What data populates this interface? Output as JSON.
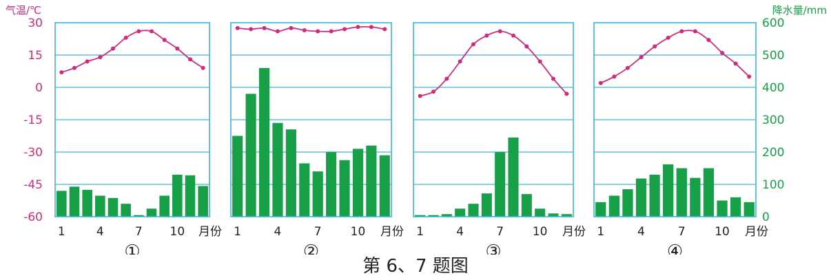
{
  "figure": {
    "caption": "第 6、7 题图",
    "temp_axis_label": "气温/℃",
    "precip_axis_label": "降水量/mm",
    "temp_ticks": [
      "30",
      "15",
      "0",
      "-15",
      "-30",
      "-45",
      "-60"
    ],
    "precip_ticks": [
      "600",
      "500",
      "400",
      "300",
      "200",
      "100",
      "0"
    ],
    "month_ticks": [
      "1",
      "4",
      "7",
      "10"
    ],
    "month_unit": "月份",
    "colors": {
      "temperature": "#d02a7c",
      "precipitation": "#17a048",
      "frame": "#39b5d9",
      "text": "#222222"
    }
  },
  "chart_data": [
    {
      "type": "bar",
      "title": "①",
      "categories": [
        "1",
        "2",
        "3",
        "4",
        "5",
        "6",
        "7",
        "8",
        "9",
        "10",
        "11",
        "12"
      ],
      "x_tick_labels": [
        "1",
        "4",
        "7",
        "10"
      ],
      "x_unit": "月份",
      "y_left": {
        "label": "气温/℃",
        "range": [
          -60,
          30
        ],
        "ticks": [
          30,
          15,
          0,
          -15,
          -30,
          -45,
          -60
        ]
      },
      "y_right": {
        "label": "降水量/mm",
        "range": [
          0,
          600
        ],
        "ticks": [
          600,
          500,
          400,
          300,
          200,
          100,
          0
        ]
      },
      "grid": true,
      "temperature": [
        7,
        9,
        12,
        14,
        18,
        23,
        26,
        26,
        22,
        18,
        13,
        9
      ],
      "precipitation": [
        80,
        93,
        83,
        65,
        58,
        40,
        5,
        25,
        65,
        130,
        128,
        95
      ]
    },
    {
      "type": "bar",
      "title": "②",
      "categories": [
        "1",
        "2",
        "3",
        "4",
        "5",
        "6",
        "7",
        "8",
        "9",
        "10",
        "11",
        "12"
      ],
      "x_tick_labels": [
        "1",
        "4",
        "7",
        "10"
      ],
      "x_unit": "月份",
      "y_left": {
        "label": "气温/℃",
        "range": [
          -60,
          30
        ],
        "ticks": [
          30,
          15,
          0,
          -15,
          -30,
          -45,
          -60
        ]
      },
      "y_right": {
        "label": "降水量/mm",
        "range": [
          0,
          600
        ],
        "ticks": [
          600,
          500,
          400,
          300,
          200,
          100,
          0
        ]
      },
      "grid": true,
      "temperature": [
        27.5,
        27,
        27.5,
        26,
        27.5,
        26.5,
        26,
        26,
        27,
        28,
        28,
        27
      ],
      "precipitation": [
        250,
        380,
        460,
        290,
        270,
        165,
        140,
        200,
        175,
        210,
        220,
        190
      ]
    },
    {
      "type": "bar",
      "title": "③",
      "categories": [
        "1",
        "2",
        "3",
        "4",
        "5",
        "6",
        "7",
        "8",
        "9",
        "10",
        "11",
        "12"
      ],
      "x_tick_labels": [
        "1",
        "4",
        "7",
        "10"
      ],
      "x_unit": "月份",
      "y_left": {
        "label": "气温/℃",
        "range": [
          -60,
          30
        ],
        "ticks": [
          30,
          15,
          0,
          -15,
          -30,
          -45,
          -60
        ]
      },
      "y_right": {
        "label": "降水量/mm",
        "range": [
          0,
          600
        ],
        "ticks": [
          600,
          500,
          400,
          300,
          200,
          100,
          0
        ]
      },
      "grid": true,
      "temperature": [
        -4,
        -2,
        4,
        12,
        20,
        24,
        26,
        24,
        19,
        12,
        4,
        -3
      ],
      "precipitation": [
        5,
        5,
        8,
        25,
        40,
        72,
        200,
        245,
        70,
        25,
        10,
        8
      ]
    },
    {
      "type": "bar",
      "title": "④",
      "categories": [
        "1",
        "2",
        "3",
        "4",
        "5",
        "6",
        "7",
        "8",
        "9",
        "10",
        "11",
        "12"
      ],
      "x_tick_labels": [
        "1",
        "4",
        "7",
        "10"
      ],
      "x_unit": "月份",
      "y_left": {
        "label": "气温/℃",
        "range": [
          -60,
          30
        ],
        "ticks": [
          30,
          15,
          0,
          -15,
          -30,
          -45,
          -60
        ]
      },
      "y_right": {
        "label": "降水量/mm",
        "range": [
          0,
          600
        ],
        "ticks": [
          600,
          500,
          400,
          300,
          200,
          100,
          0
        ]
      },
      "grid": true,
      "temperature": [
        2,
        5,
        9,
        14,
        19,
        23,
        26,
        26,
        22,
        16,
        11,
        5
      ],
      "precipitation": [
        45,
        65,
        85,
        118,
        130,
        162,
        150,
        120,
        150,
        50,
        60,
        45
      ]
    }
  ]
}
